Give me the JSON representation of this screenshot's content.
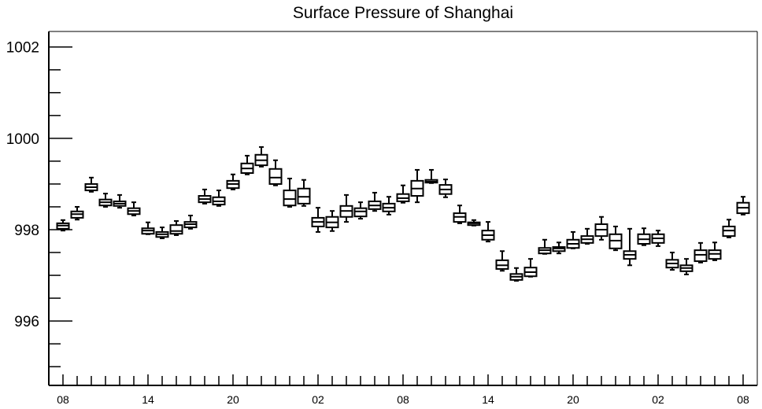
{
  "chart_data": {
    "type": "box",
    "title": "Surface Pressure of Shanghai",
    "ylim": [
      994.59,
      1002.34
    ],
    "y_ticks": [
      1002,
      1000,
      998,
      996
    ],
    "x_tick_labels": [
      "08",
      "14",
      "20",
      "02",
      "08",
      "14",
      "20",
      "02",
      "08"
    ],
    "grid": false,
    "colors": {
      "line": "#000000",
      "background": "#ffffff"
    },
    "boxes": [
      {
        "x": 8,
        "min": 997.98,
        "q1": 998.02,
        "median": 998.09,
        "q3": 998.14,
        "max": 998.21
      },
      {
        "x": 9,
        "min": 998.22,
        "q1": 998.26,
        "median": 998.34,
        "q3": 998.4,
        "max": 998.5
      },
      {
        "x": 10,
        "min": 998.83,
        "q1": 998.86,
        "median": 998.93,
        "q3": 999.0,
        "max": 999.14
      },
      {
        "x": 11,
        "min": 998.5,
        "q1": 998.53,
        "median": 998.6,
        "q3": 998.66,
        "max": 998.79
      },
      {
        "x": 12,
        "min": 998.48,
        "q1": 998.52,
        "median": 998.57,
        "q3": 998.62,
        "max": 998.76
      },
      {
        "x": 13,
        "min": 998.31,
        "q1": 998.34,
        "median": 998.41,
        "q3": 998.47,
        "max": 998.6
      },
      {
        "x": 14,
        "min": 997.9,
        "q1": 997.91,
        "median": 997.98,
        "q3": 998.03,
        "max": 998.16
      },
      {
        "x": 15,
        "min": 997.81,
        "q1": 997.84,
        "median": 997.9,
        "q3": 997.95,
        "max": 998.05
      },
      {
        "x": 16,
        "min": 997.88,
        "q1": 997.91,
        "median": 997.97,
        "q3": 998.1,
        "max": 998.19
      },
      {
        "x": 17,
        "min": 998.02,
        "q1": 998.05,
        "median": 998.12,
        "q3": 998.17,
        "max": 998.31
      },
      {
        "x": 18,
        "min": 998.57,
        "q1": 998.6,
        "median": 998.67,
        "q3": 998.74,
        "max": 998.88
      },
      {
        "x": 19,
        "min": 998.52,
        "q1": 998.55,
        "median": 998.62,
        "q3": 998.71,
        "max": 998.86
      },
      {
        "x": 20,
        "min": 998.88,
        "q1": 998.91,
        "median": 999.0,
        "q3": 999.07,
        "max": 999.21
      },
      {
        "x": 21,
        "min": 999.21,
        "q1": 999.24,
        "median": 999.34,
        "q3": 999.45,
        "max": 999.62
      },
      {
        "x": 22,
        "min": 999.38,
        "q1": 999.41,
        "median": 999.52,
        "q3": 999.64,
        "max": 999.81
      },
      {
        "x": 23,
        "min": 998.97,
        "q1": 999.0,
        "median": 999.14,
        "q3": 999.33,
        "max": 999.52
      },
      {
        "x": 0,
        "min": 998.5,
        "q1": 998.53,
        "median": 998.67,
        "q3": 998.86,
        "max": 999.12
      },
      {
        "x": 1,
        "min": 998.52,
        "q1": 998.57,
        "median": 998.72,
        "q3": 998.9,
        "max": 999.09
      },
      {
        "x": 2,
        "min": 997.95,
        "q1": 998.07,
        "median": 998.17,
        "q3": 998.26,
        "max": 998.48
      },
      {
        "x": 3,
        "min": 997.97,
        "q1": 998.05,
        "median": 998.16,
        "q3": 998.28,
        "max": 998.41
      },
      {
        "x": 4,
        "min": 998.17,
        "q1": 998.28,
        "median": 998.41,
        "q3": 998.52,
        "max": 998.76
      },
      {
        "x": 5,
        "min": 998.24,
        "q1": 998.29,
        "median": 998.4,
        "q3": 998.47,
        "max": 998.6
      },
      {
        "x": 6,
        "min": 998.41,
        "q1": 998.45,
        "median": 998.53,
        "q3": 998.62,
        "max": 998.81
      },
      {
        "x": 7,
        "min": 998.33,
        "q1": 998.4,
        "median": 998.48,
        "q3": 998.57,
        "max": 998.72
      },
      {
        "x": 8,
        "min": 998.59,
        "q1": 998.62,
        "median": 998.69,
        "q3": 998.78,
        "max": 998.97
      },
      {
        "x": 9,
        "min": 998.6,
        "q1": 998.74,
        "median": 998.9,
        "q3": 999.07,
        "max": 999.31
      },
      {
        "x": 10,
        "min": 999.02,
        "q1": 999.03,
        "median": 999.05,
        "q3": 999.09,
        "max": 999.31
      },
      {
        "x": 11,
        "min": 998.71,
        "q1": 998.78,
        "median": 998.88,
        "q3": 998.98,
        "max": 999.1
      },
      {
        "x": 12,
        "min": 998.14,
        "q1": 998.17,
        "median": 998.28,
        "q3": 998.36,
        "max": 998.53
      },
      {
        "x": 13,
        "min": 998.09,
        "q1": 998.1,
        "median": 998.14,
        "q3": 998.16,
        "max": 998.21
      },
      {
        "x": 14,
        "min": 997.74,
        "q1": 997.78,
        "median": 997.88,
        "q3": 997.98,
        "max": 998.17
      },
      {
        "x": 15,
        "min": 997.1,
        "q1": 997.14,
        "median": 997.22,
        "q3": 997.33,
        "max": 997.53
      },
      {
        "x": 16,
        "min": 996.88,
        "q1": 996.9,
        "median": 996.97,
        "q3": 997.03,
        "max": 997.16
      },
      {
        "x": 17,
        "min": 996.97,
        "q1": 996.98,
        "median": 997.07,
        "q3": 997.17,
        "max": 997.36
      },
      {
        "x": 18,
        "min": 997.47,
        "q1": 997.48,
        "median": 997.55,
        "q3": 997.6,
        "max": 997.78
      },
      {
        "x": 19,
        "min": 997.48,
        "q1": 997.53,
        "median": 997.59,
        "q3": 997.62,
        "max": 997.72
      },
      {
        "x": 20,
        "min": 997.59,
        "q1": 997.6,
        "median": 997.69,
        "q3": 997.78,
        "max": 997.95
      },
      {
        "x": 21,
        "min": 997.69,
        "q1": 997.71,
        "median": 997.79,
        "q3": 997.86,
        "max": 998.02
      },
      {
        "x": 22,
        "min": 997.78,
        "q1": 997.86,
        "median": 998.0,
        "q3": 998.12,
        "max": 998.28
      },
      {
        "x": 23,
        "min": 997.55,
        "q1": 997.59,
        "median": 997.76,
        "q3": 997.9,
        "max": 998.07
      },
      {
        "x": 0,
        "min": 997.22,
        "q1": 997.36,
        "median": 997.45,
        "q3": 997.53,
        "max": 998.02
      },
      {
        "x": 1,
        "min": 997.66,
        "q1": 997.69,
        "median": 997.79,
        "q3": 997.9,
        "max": 998.03
      },
      {
        "x": 2,
        "min": 997.64,
        "q1": 997.71,
        "median": 997.81,
        "q3": 997.9,
        "max": 997.98
      },
      {
        "x": 3,
        "min": 997.12,
        "q1": 997.17,
        "median": 997.26,
        "q3": 997.34,
        "max": 997.5
      },
      {
        "x": 4,
        "min": 997.02,
        "q1": 997.09,
        "median": 997.16,
        "q3": 997.22,
        "max": 997.36
      },
      {
        "x": 5,
        "min": 997.28,
        "q1": 997.31,
        "median": 997.45,
        "q3": 997.55,
        "max": 997.71
      },
      {
        "x": 6,
        "min": 997.33,
        "q1": 997.36,
        "median": 997.47,
        "q3": 997.55,
        "max": 997.72
      },
      {
        "x": 7,
        "min": 997.83,
        "q1": 997.86,
        "median": 997.98,
        "q3": 998.07,
        "max": 998.22
      },
      {
        "x": 8,
        "min": 998.33,
        "q1": 998.36,
        "median": 998.48,
        "q3": 998.59,
        "max": 998.72
      }
    ]
  }
}
